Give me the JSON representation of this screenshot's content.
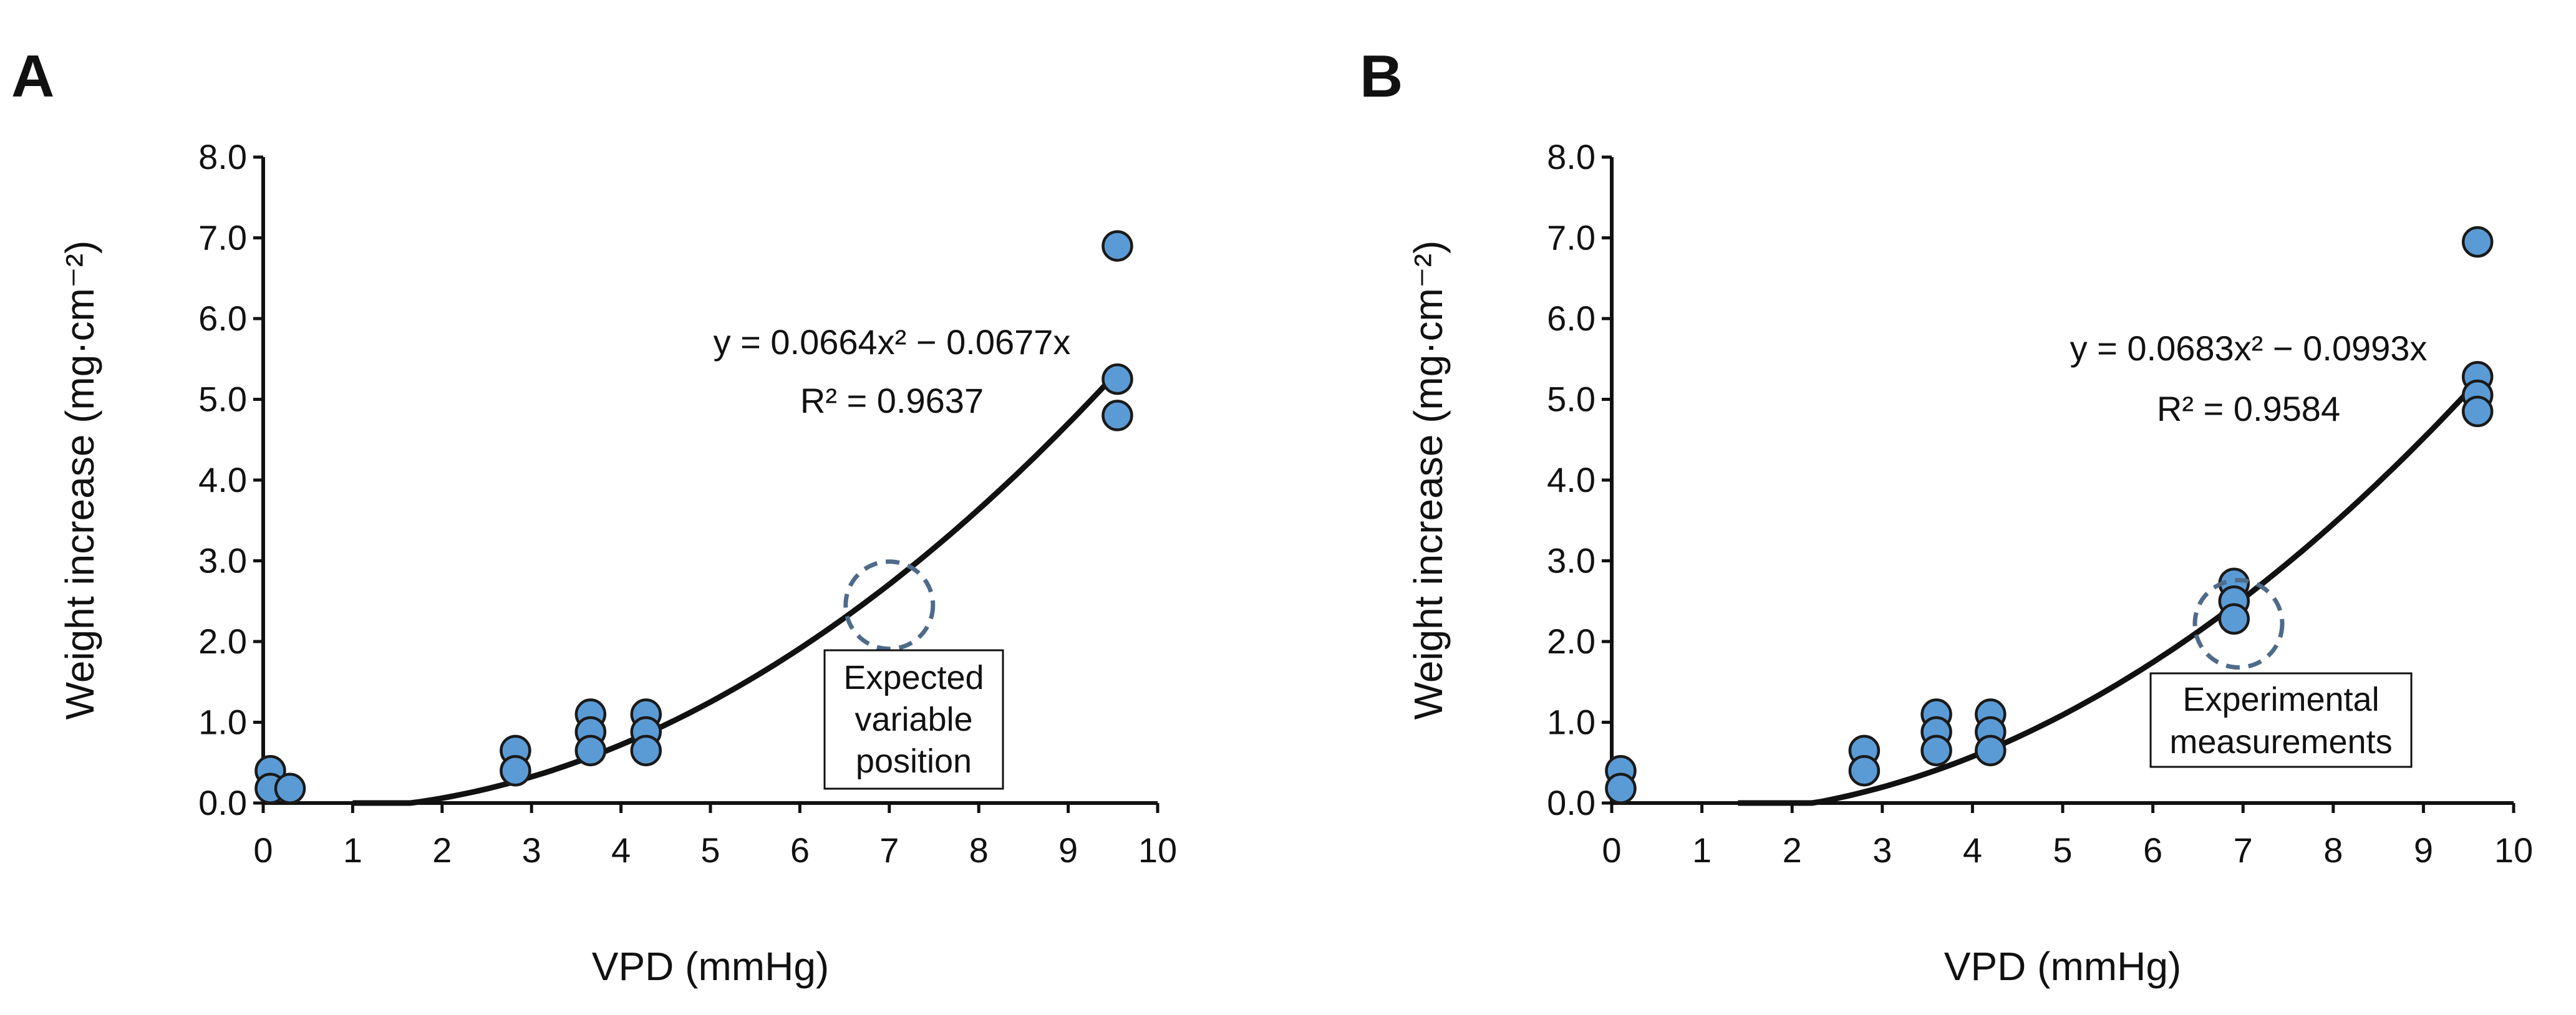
{
  "chart_data": [
    {
      "panel_label": "A",
      "type": "scatter",
      "xlabel": "VPD (mmHg)",
      "ylabel": "Weight increase (mg·cm⁻²)",
      "xlim": [
        0,
        10
      ],
      "ylim": [
        0,
        8
      ],
      "x_ticks": [
        "0",
        "1",
        "2",
        "3",
        "4",
        "5",
        "6",
        "7",
        "8",
        "9",
        "10"
      ],
      "y_ticks": [
        "0.0",
        "1.0",
        "2.0",
        "3.0",
        "4.0",
        "5.0",
        "6.0",
        "7.0",
        "8.0"
      ],
      "points": [
        {
          "x": 0.08,
          "y": 0.4
        },
        {
          "x": 0.08,
          "y": 0.18
        },
        {
          "x": 0.3,
          "y": 0.18
        },
        {
          "x": 2.82,
          "y": 0.65
        },
        {
          "x": 2.82,
          "y": 0.4
        },
        {
          "x": 3.66,
          "y": 1.1
        },
        {
          "x": 3.66,
          "y": 0.88
        },
        {
          "x": 3.66,
          "y": 0.65
        },
        {
          "x": 4.28,
          "y": 1.1
        },
        {
          "x": 4.28,
          "y": 0.88
        },
        {
          "x": 4.28,
          "y": 0.65
        },
        {
          "x": 9.55,
          "y": 6.9
        },
        {
          "x": 9.55,
          "y": 5.25
        },
        {
          "x": 9.55,
          "y": 4.8
        }
      ],
      "fit": {
        "a": 0.0664,
        "b": -0.0677,
        "c": -0.07,
        "x_range": [
          1.0,
          9.6
        ]
      },
      "equation_text": "y = 0.0664x² − 0.0677x",
      "r2_text": "R² = 0.9637",
      "highlight": {
        "x": 7.0,
        "y": 2.45
      },
      "annotation_lines": [
        "Expected",
        "variable",
        "position"
      ]
    },
    {
      "panel_label": "B",
      "type": "scatter",
      "xlabel": "VPD (mmHg)",
      "ylabel": "Weight increase (mg·cm⁻²)",
      "xlim": [
        0,
        10
      ],
      "ylim": [
        0,
        8
      ],
      "x_ticks": [
        "0",
        "1",
        "2",
        "3",
        "4",
        "5",
        "6",
        "7",
        "8",
        "9",
        "10"
      ],
      "y_ticks": [
        "0.0",
        "1.0",
        "2.0",
        "3.0",
        "4.0",
        "5.0",
        "6.0",
        "7.0",
        "8.0"
      ],
      "points": [
        {
          "x": 0.1,
          "y": 0.4
        },
        {
          "x": 0.1,
          "y": 0.18
        },
        {
          "x": 2.8,
          "y": 0.65
        },
        {
          "x": 2.8,
          "y": 0.4
        },
        {
          "x": 3.6,
          "y": 1.1
        },
        {
          "x": 3.6,
          "y": 0.88
        },
        {
          "x": 3.6,
          "y": 0.65
        },
        {
          "x": 4.2,
          "y": 1.1
        },
        {
          "x": 4.2,
          "y": 0.88
        },
        {
          "x": 4.2,
          "y": 0.65
        },
        {
          "x": 6.9,
          "y": 2.72
        },
        {
          "x": 6.9,
          "y": 2.5
        },
        {
          "x": 6.9,
          "y": 2.28
        },
        {
          "x": 9.6,
          "y": 6.95
        },
        {
          "x": 9.6,
          "y": 5.28
        },
        {
          "x": 9.6,
          "y": 5.05
        },
        {
          "x": 9.6,
          "y": 4.85
        }
      ],
      "fit": {
        "a": 0.0683,
        "b": -0.0993,
        "c": -0.12,
        "x_range": [
          1.4,
          9.6
        ]
      },
      "equation_text": "y = 0.0683x² − 0.0993x",
      "r2_text": "R² = 0.9584",
      "highlight": {
        "x": 6.95,
        "y": 2.22
      },
      "annotation_lines": [
        "Experimental",
        "measurements"
      ]
    }
  ]
}
